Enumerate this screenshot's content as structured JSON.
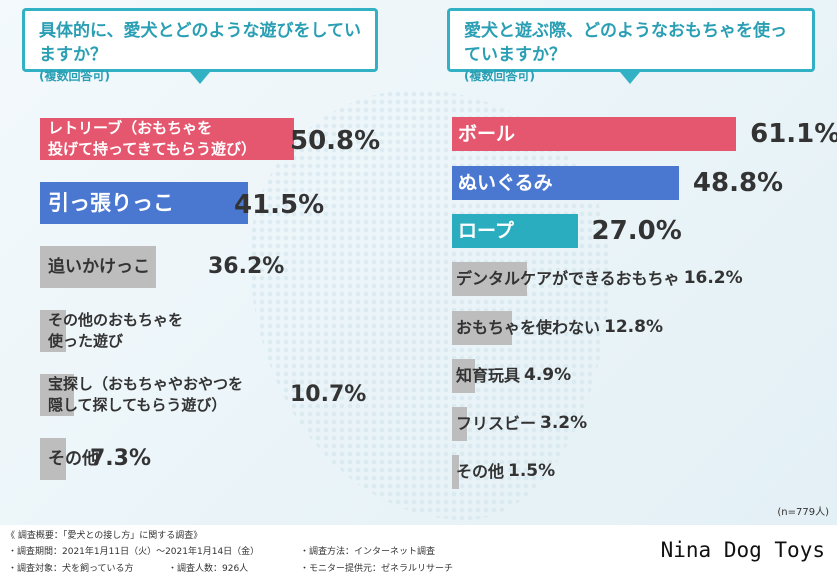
{
  "chart_data": [
    {
      "type": "bar",
      "title": "具体的に、愛犬とどのような遊びをしていますか？",
      "subtitle": "(複数回答可)",
      "categories": [
        "レトリーブ（おもちゃを投げて持ってきてもらう遊び）",
        "引っ張りっこ",
        "追いかけっこ",
        "その他のおもちゃを使った遊び",
        "宝探し（おもちゃやおやつを隠して探してもらう遊び）",
        "その他"
      ],
      "label_lines": [
        [
          "レトリーブ（おもちゃを",
          "投げて持ってきてもらう遊び）"
        ],
        [
          "引っ張りっこ"
        ],
        [
          "追いかけっこ"
        ],
        [
          "その他のおもちゃを",
          "使った遊び"
        ],
        [
          "宝探し（おもちゃやおやつを",
          "隠して探してもらう遊び）"
        ],
        [
          "その他"
        ]
      ],
      "values": [
        50.8,
        41.5,
        36.2,
        0,
        10.7,
        7.3
      ],
      "value_labels": [
        "50.8%",
        "41.5%",
        "36.2%",
        "",
        "10.7%",
        "7.3%"
      ],
      "colors": [
        "#e5566f",
        "#4a78d1",
        "#bdbdbd",
        "#bdbdbd",
        "#bdbdbd",
        "#bdbdbd"
      ]
    },
    {
      "type": "bar",
      "title": "愛犬と遊ぶ際、どのようなおもちゃを使っていますか？",
      "subtitle": "(複数回答可)",
      "categories": [
        "ボール",
        "ぬいぐるみ",
        "ロープ",
        "デンタルケアができるおもちゃ",
        "おもちゃを使わない",
        "知育玩具",
        "フリスビー",
        "その他"
      ],
      "values": [
        61.1,
        48.8,
        27.0,
        16.2,
        12.8,
        4.9,
        3.2,
        1.5
      ],
      "value_labels": [
        "61.1%",
        "48.8%",
        "27.0%",
        "16.2%",
        "12.8%",
        "4.9%",
        "3.2%",
        "1.5%"
      ],
      "colors": [
        "#e5566f",
        "#4a78d1",
        "#2aaebf",
        "#bdbdbd",
        "#bdbdbd",
        "#bdbdbd",
        "#bdbdbd",
        "#bdbdbd"
      ],
      "note": "(n=779人)"
    }
  ],
  "footer": {
    "heading": "《 調査概要：「愛犬との接し方」に関する調査》",
    "items": [
      "・調査期間：2021年1月11日（火）〜2021年1月14日（金）",
      "・調査方法：インターネット調査",
      "・調査対象：犬を飼っている方",
      "・調査人数：926人",
      "・モニター提供元：ゼネラルリサーチ"
    ]
  },
  "brand": "Nina Dog Toys"
}
